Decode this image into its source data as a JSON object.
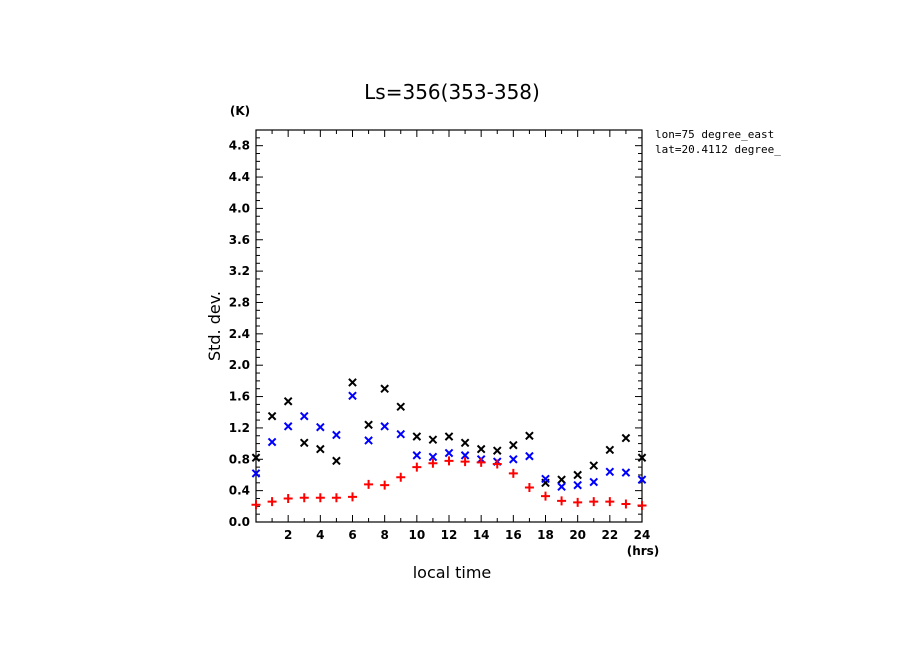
{
  "chart_data": {
    "type": "scatter",
    "title": "Ls=356(353-358)",
    "xlabel": "local time",
    "ylabel": "Std. dev.",
    "x_unit": "(hrs)",
    "y_unit": "(K)",
    "annotations": [
      "lon=75 degree_east",
      "lat=20.4112 degree_"
    ],
    "xlim": [
      0,
      24
    ],
    "ylim": [
      0,
      5.0
    ],
    "x_ticks": [
      2,
      4,
      6,
      8,
      10,
      12,
      14,
      16,
      18,
      20,
      22,
      24
    ],
    "y_ticks": [
      "0.0",
      "0.4",
      "0.8",
      "1.2",
      "1.6",
      "2.0",
      "2.4",
      "2.8",
      "3.2",
      "3.6",
      "4.0",
      "4.4",
      "4.8"
    ],
    "grid": false,
    "series": [
      {
        "color": "#000000",
        "marker": "x",
        "x": [
          0,
          1,
          2,
          3,
          4,
          5,
          6,
          7,
          8,
          9,
          10,
          11,
          12,
          13,
          14,
          15,
          16,
          17,
          18,
          19,
          20,
          21,
          22,
          23,
          24
        ],
        "y": [
          0.82,
          1.35,
          1.54,
          1.01,
          0.93,
          0.78,
          1.78,
          1.24,
          1.7,
          1.47,
          1.09,
          1.05,
          1.09,
          1.01,
          0.93,
          0.91,
          0.98,
          1.1,
          0.5,
          0.54,
          0.6,
          0.72,
          0.92,
          1.07,
          0.82
        ]
      },
      {
        "color": "#0000ff",
        "marker": "x",
        "x": [
          0,
          1,
          2,
          3,
          4,
          5,
          6,
          7,
          8,
          9,
          10,
          11,
          12,
          13,
          14,
          15,
          16,
          17,
          18,
          19,
          20,
          21,
          22,
          23,
          24
        ],
        "y": [
          0.62,
          1.02,
          1.22,
          1.35,
          1.21,
          1.11,
          1.61,
          1.04,
          1.22,
          1.12,
          0.85,
          0.83,
          0.88,
          0.85,
          0.8,
          0.77,
          0.8,
          0.84,
          0.55,
          0.45,
          0.47,
          0.51,
          0.64,
          0.63,
          0.54
        ]
      },
      {
        "color": "#ff0000",
        "marker": "+",
        "x": [
          0,
          1,
          2,
          3,
          4,
          5,
          6,
          7,
          8,
          9,
          10,
          11,
          12,
          13,
          14,
          15,
          16,
          17,
          18,
          19,
          20,
          21,
          22,
          23,
          24
        ],
        "y": [
          0.22,
          0.26,
          0.3,
          0.31,
          0.31,
          0.31,
          0.32,
          0.48,
          0.47,
          0.57,
          0.7,
          0.75,
          0.78,
          0.77,
          0.76,
          0.74,
          0.62,
          0.44,
          0.33,
          0.27,
          0.25,
          0.26,
          0.26,
          0.23,
          0.21
        ]
      }
    ]
  }
}
